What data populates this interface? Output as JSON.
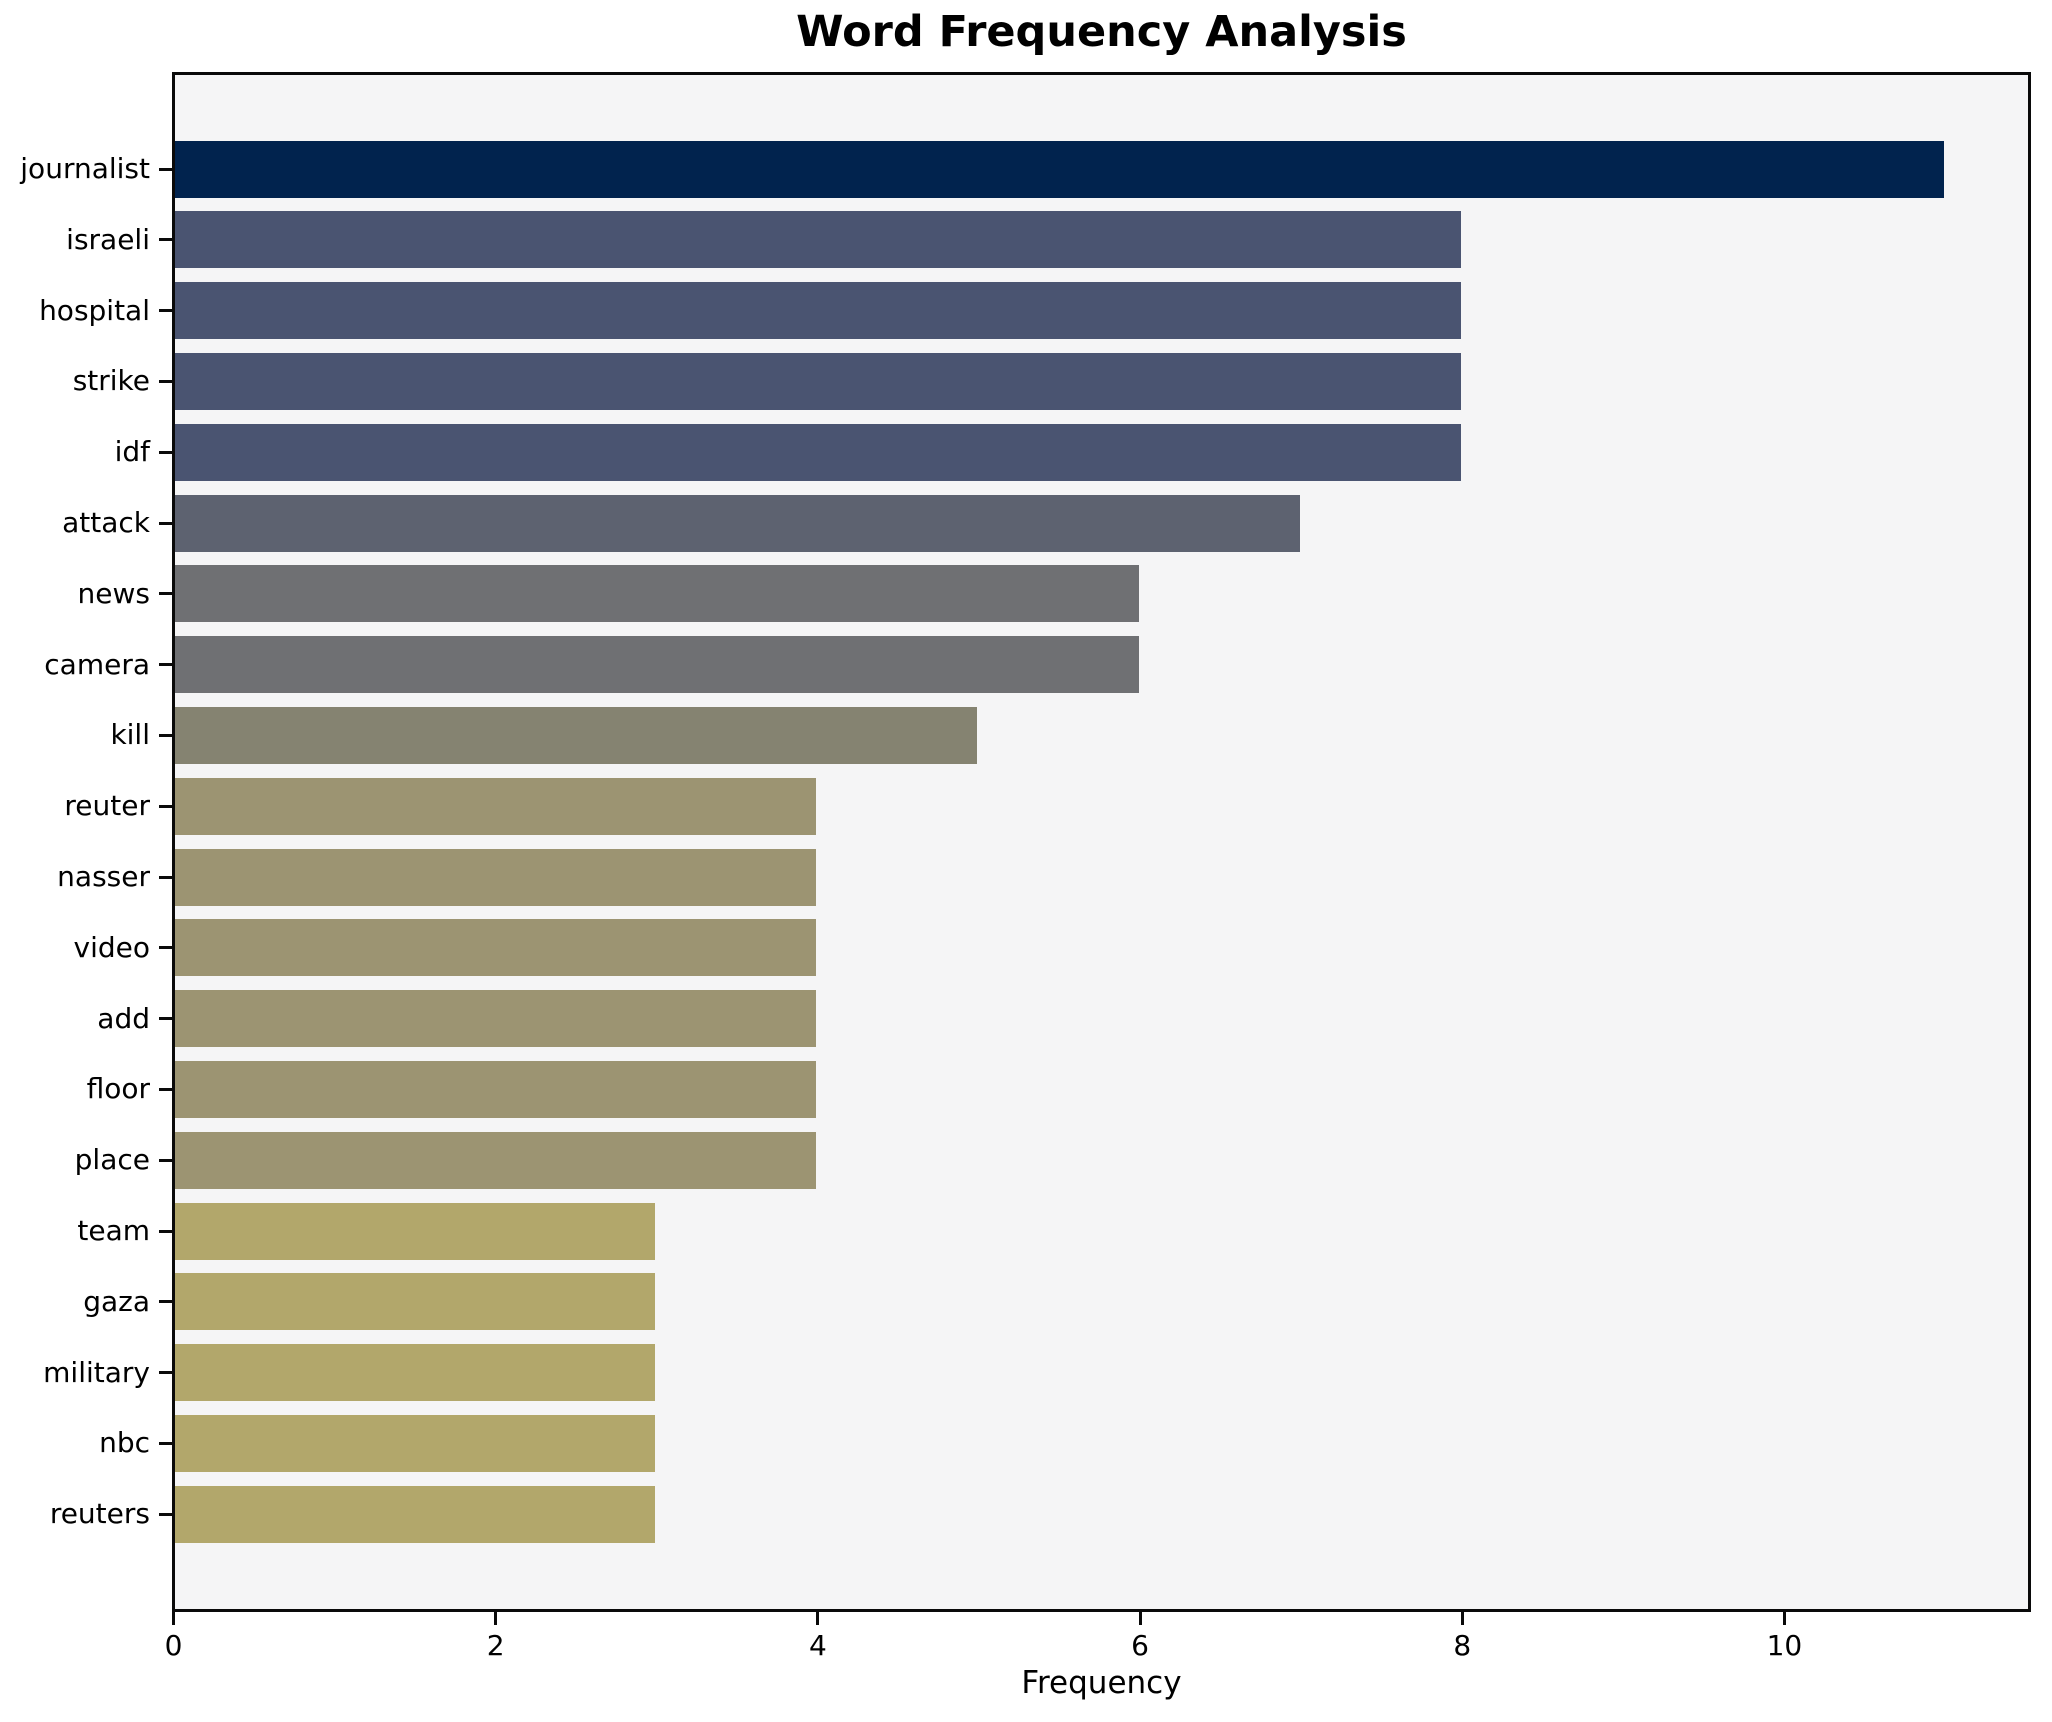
{
  "chart_data": {
    "type": "bar",
    "orientation": "horizontal",
    "title": "Word Frequency Analysis",
    "xlabel": "Frequency",
    "ylabel": "",
    "grid": false,
    "legend": false,
    "xlim": [
      0,
      11.54
    ],
    "xticks": [
      0,
      2,
      4,
      6,
      8,
      10
    ],
    "plot_background": "#f5f5f6",
    "spine_color": "#0a0a0a",
    "categories": [
      "journalist",
      "israeli",
      "hospital",
      "strike",
      "idf",
      "attack",
      "news",
      "camera",
      "kill",
      "reuter",
      "nasser",
      "video",
      "add",
      "floor",
      "place",
      "team",
      "gaza",
      "military",
      "nbc",
      "reuters"
    ],
    "values": [
      11,
      8,
      8,
      8,
      8,
      7,
      6,
      6,
      5,
      4,
      4,
      4,
      4,
      4,
      4,
      3,
      3,
      3,
      3,
      3
    ],
    "bar_colors": [
      "#01234e",
      "#4a5471",
      "#4a5471",
      "#4a5471",
      "#4a5471",
      "#5d6270",
      "#6f7073",
      "#6f7073",
      "#858371",
      "#9c9472",
      "#9c9472",
      "#9c9472",
      "#9c9472",
      "#9c9472",
      "#9c9472",
      "#b2a76b",
      "#b2a76b",
      "#b2a76b",
      "#b2a76b",
      "#b2a76b"
    ]
  }
}
